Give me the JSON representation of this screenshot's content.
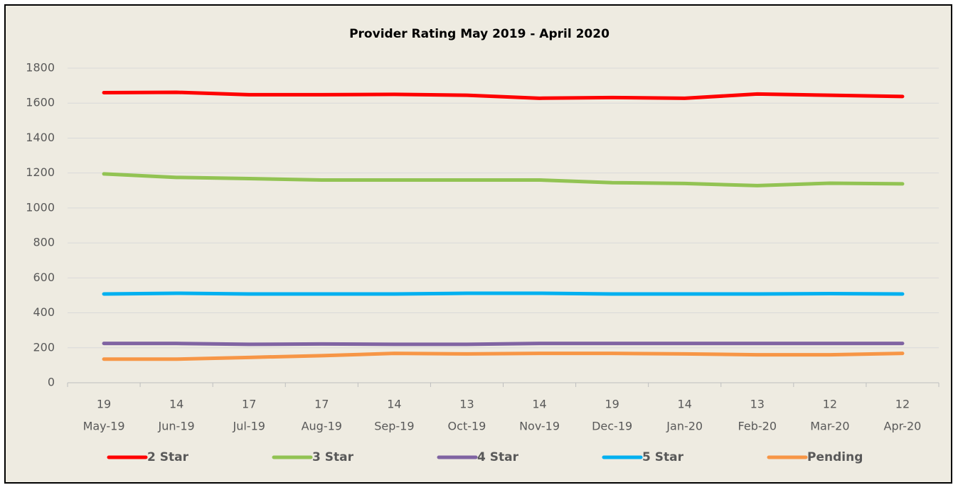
{
  "chart_data": {
    "type": "line",
    "title": "Provider Rating May 2019 - April 2020",
    "categories": [
      [
        "19",
        "May-19"
      ],
      [
        "14",
        "Jun-19"
      ],
      [
        "17",
        "Jul-19"
      ],
      [
        "17",
        "Aug-19"
      ],
      [
        "14",
        "Sep-19"
      ],
      [
        "13",
        "Oct-19"
      ],
      [
        "14",
        "Nov-19"
      ],
      [
        "19",
        "Dec-19"
      ],
      [
        "14",
        "Jan-20"
      ],
      [
        "13",
        "Feb-20"
      ],
      [
        "12",
        "Mar-20"
      ],
      [
        "12",
        "Apr-20"
      ]
    ],
    "series": [
      {
        "name": "2 Star",
        "color": "#ff0000",
        "values": [
          1660,
          1662,
          1648,
          1648,
          1650,
          1645,
          1628,
          1632,
          1628,
          1652,
          1645,
          1638
        ]
      },
      {
        "name": "3 Star",
        "color": "#92c353",
        "values": [
          1195,
          1175,
          1168,
          1160,
          1160,
          1160,
          1160,
          1145,
          1140,
          1128,
          1142,
          1138
        ]
      },
      {
        "name": "4 Star",
        "color": "#8064a2",
        "values": [
          225,
          225,
          220,
          222,
          220,
          220,
          225,
          225,
          225,
          225,
          225,
          225
        ]
      },
      {
        "name": "5 Star",
        "color": "#00b0f0",
        "values": [
          508,
          512,
          508,
          508,
          508,
          512,
          512,
          508,
          508,
          508,
          510,
          508
        ]
      },
      {
        "name": "Pending",
        "color": "#f79646",
        "values": [
          135,
          135,
          145,
          155,
          168,
          165,
          168,
          168,
          165,
          160,
          160,
          168
        ]
      }
    ],
    "ylim": [
      0,
      1800
    ],
    "yticks": [
      0,
      200,
      400,
      600,
      800,
      1000,
      1200,
      1400,
      1600,
      1800
    ],
    "grid": true,
    "legend": "bottom"
  }
}
